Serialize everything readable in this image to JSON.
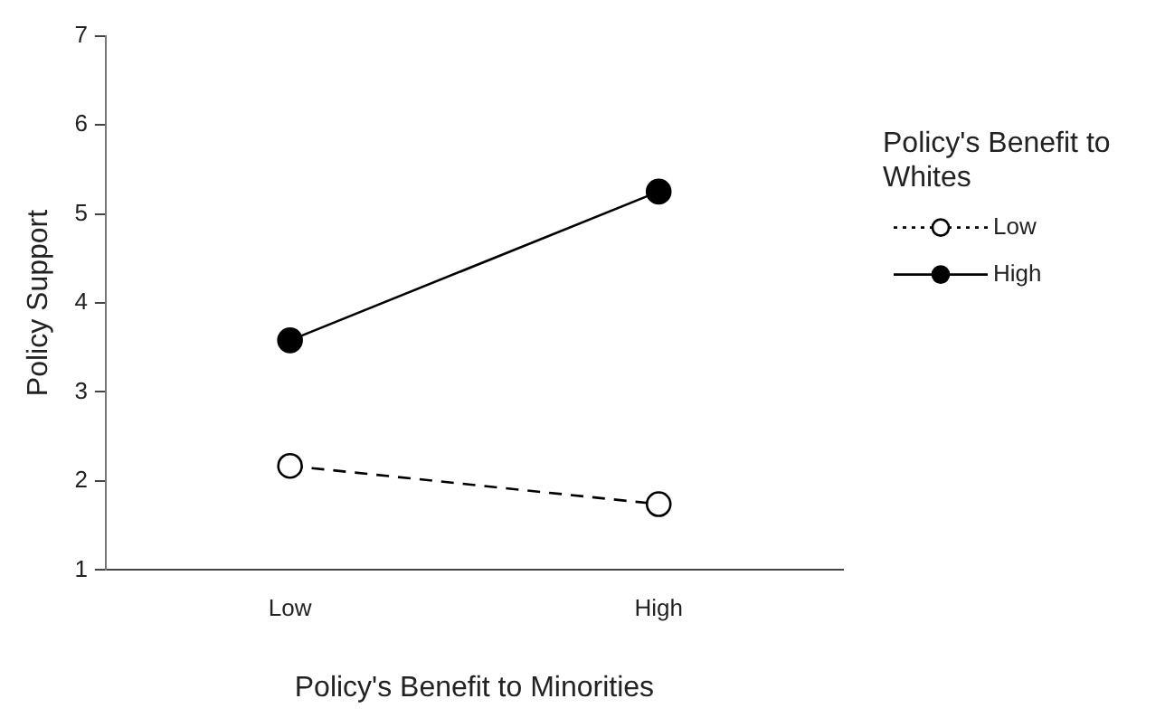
{
  "chart_data": {
    "type": "line",
    "xlabel": "Policy's Benefit to Minorities",
    "ylabel": "Policy Support",
    "legend_title": "Policy's Benefit to Whites",
    "categories": [
      "Low",
      "High"
    ],
    "series": [
      {
        "name": "Low",
        "color": "#000000",
        "values": [
          2.17,
          1.74
        ],
        "line_style": "dashed"
      },
      {
        "name": "High",
        "color": "#000000",
        "values": [
          3.58,
          5.25
        ],
        "line_style": "solid"
      }
    ],
    "ylim": [
      1,
      7
    ],
    "yticks": [
      1,
      2,
      3,
      4,
      5,
      6,
      7
    ],
    "grid": false,
    "legend": "right",
    "marker": "circle"
  }
}
